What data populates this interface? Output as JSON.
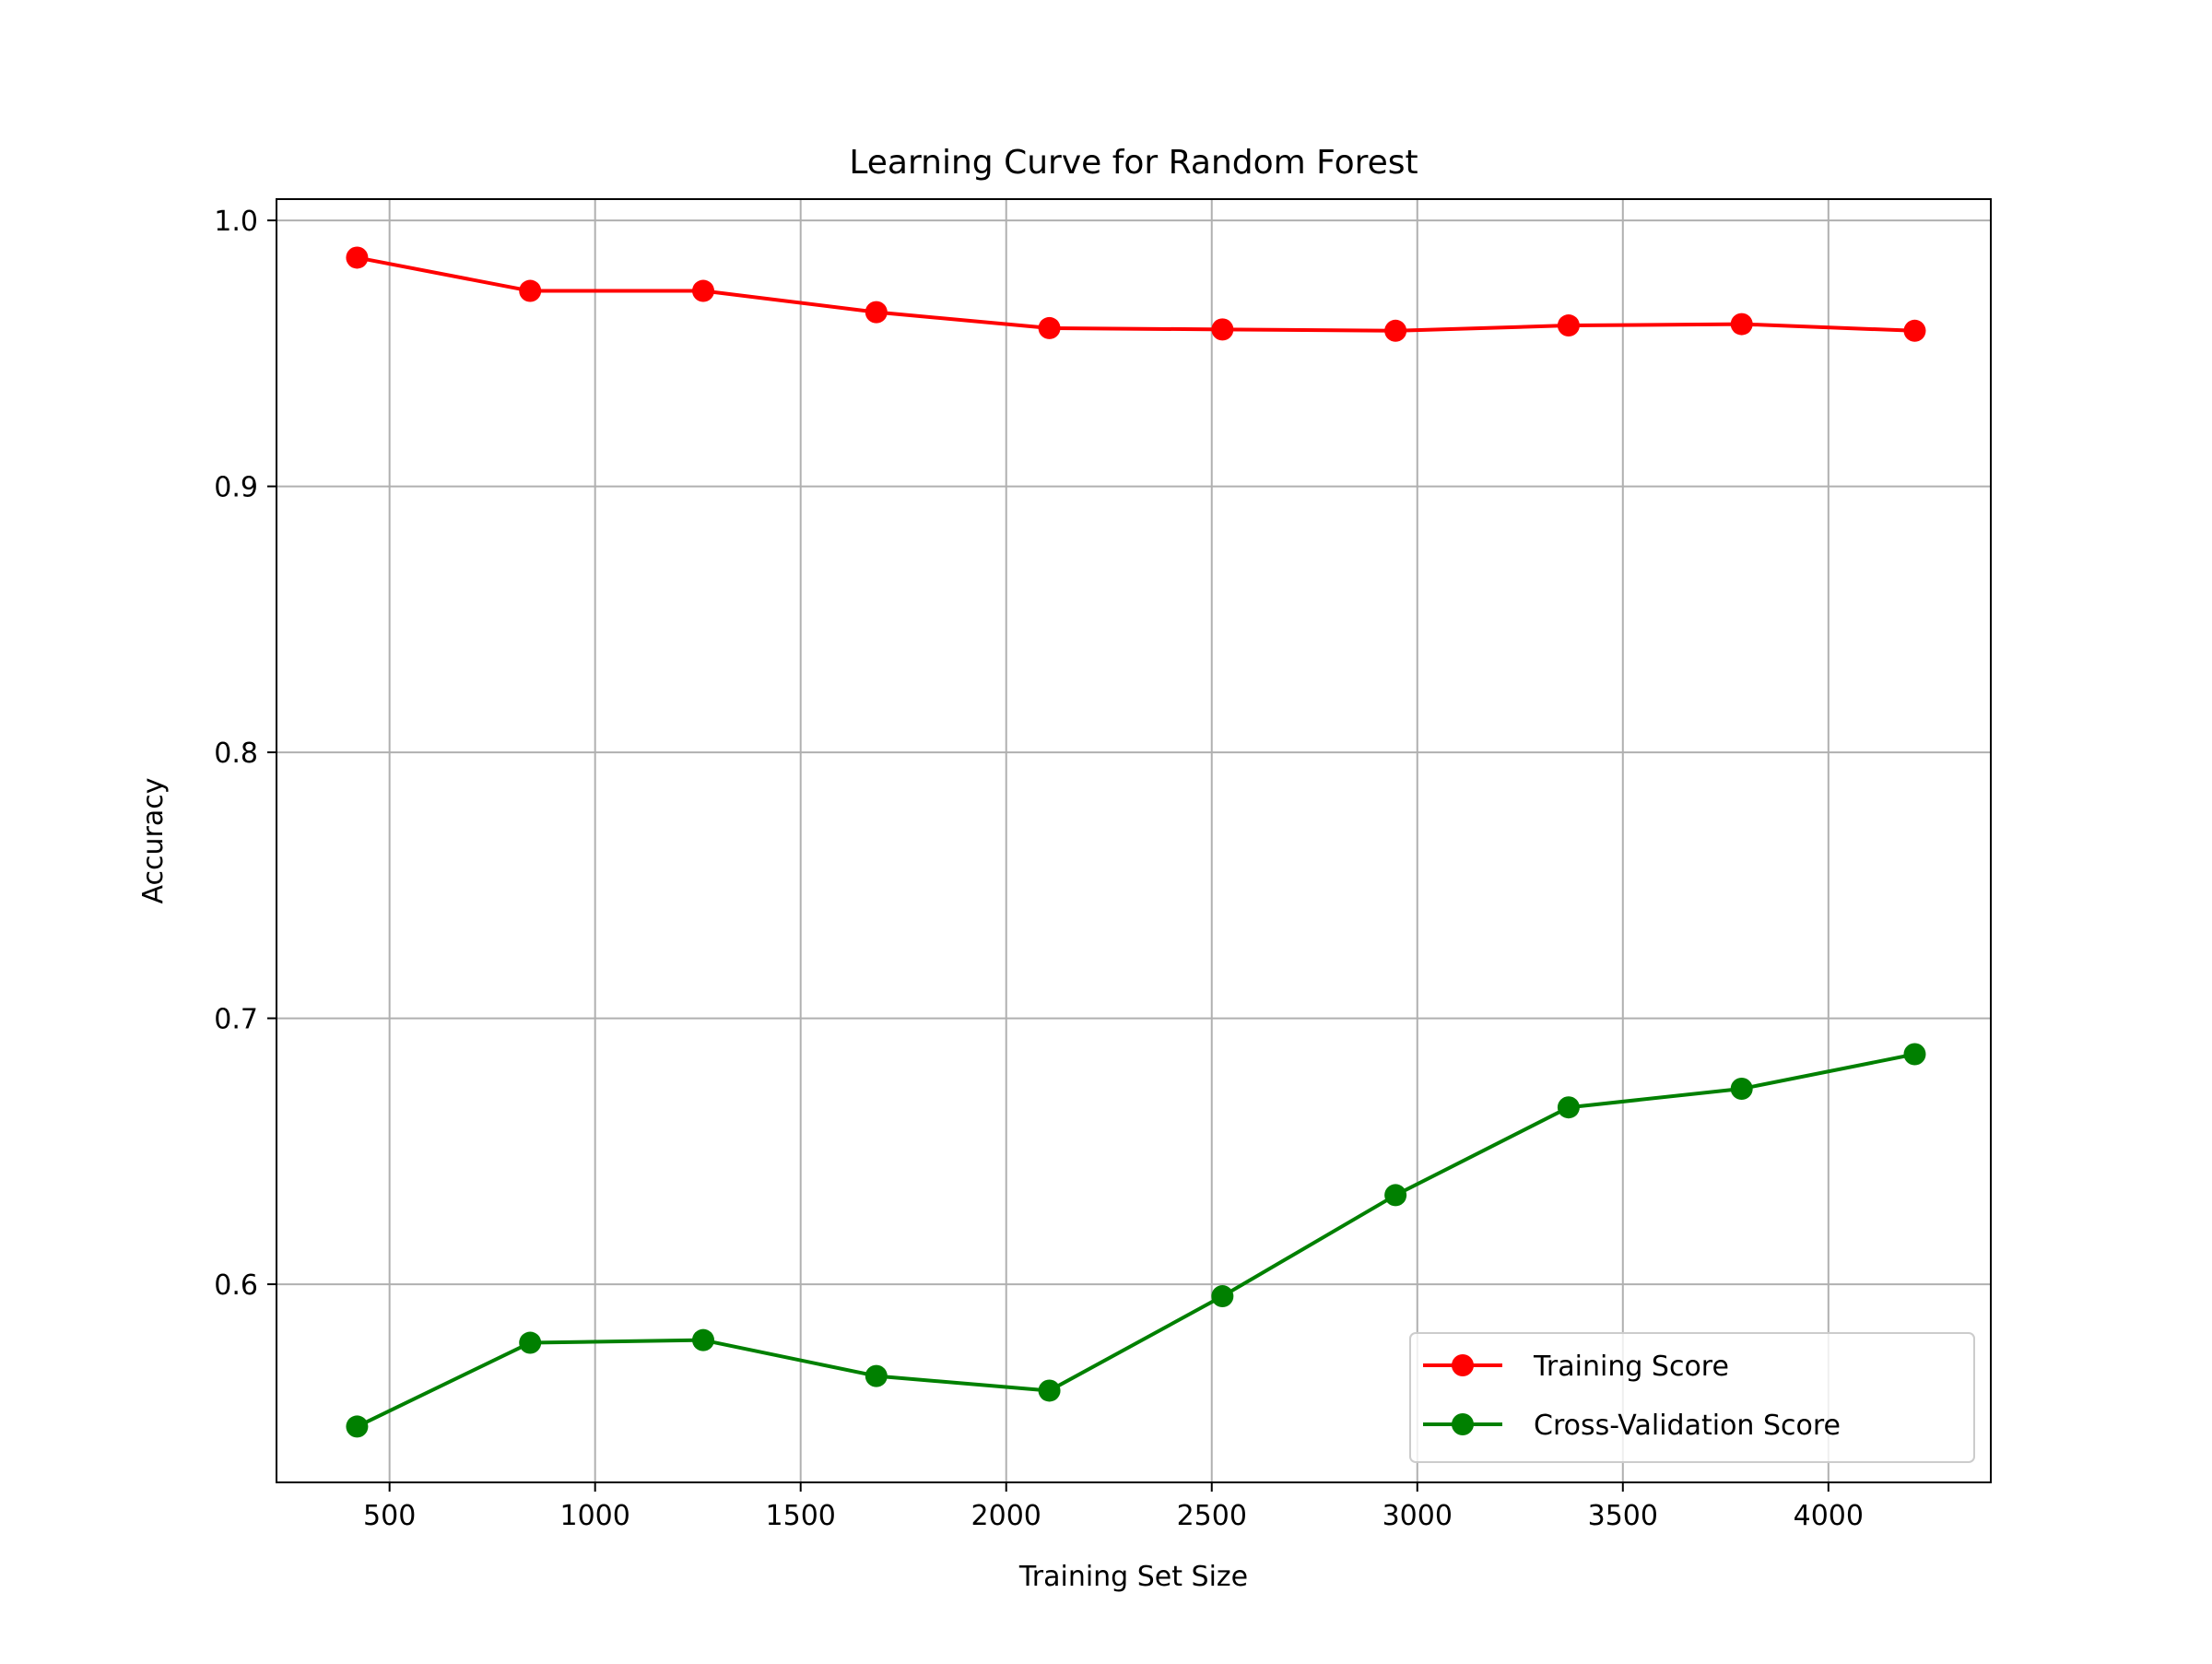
{
  "chart_data": {
    "type": "line",
    "title": "Learning Curve for Random Forest",
    "xlabel": "Training Set Size",
    "ylabel": "Accuracy",
    "xlim": [
      225,
      4395
    ],
    "ylim": [
      0.5255,
      1.008
    ],
    "xticks": [
      500,
      1000,
      1500,
      2000,
      2500,
      3000,
      3500,
      4000
    ],
    "yticks": [
      0.6,
      0.7,
      0.8,
      0.9,
      1.0
    ],
    "xtick_labels": [
      "500",
      "1000",
      "1500",
      "2000",
      "2500",
      "3000",
      "3500",
      "4000"
    ],
    "ytick_labels": [
      "0.6",
      "0.7",
      "0.8",
      "0.9",
      "1.0"
    ],
    "grid": true,
    "legend_position": "lower-right",
    "x": [
      421,
      842,
      1263,
      1684,
      2105,
      2526,
      2947,
      3368,
      3789,
      4210
    ],
    "series": [
      {
        "name": "Training Score",
        "color": "#ff0000",
        "marker": "circle",
        "values": [
          0.986,
          0.9735,
          0.9735,
          0.9655,
          0.9595,
          0.959,
          0.9585,
          0.9605,
          0.961,
          0.9585
        ]
      },
      {
        "name": "Cross-Validation Score",
        "color": "#008000",
        "marker": "circle",
        "values": [
          0.5465,
          0.578,
          0.579,
          0.5655,
          0.56,
          0.5955,
          0.6335,
          0.6665,
          0.6735,
          0.6865
        ]
      }
    ]
  }
}
